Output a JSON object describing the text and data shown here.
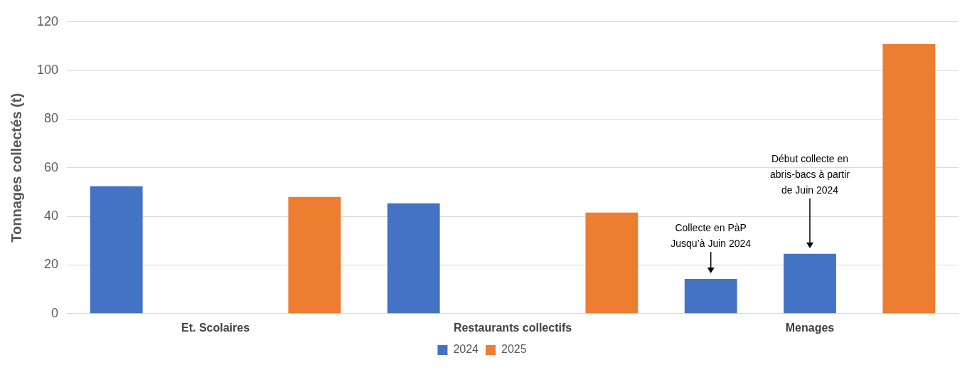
{
  "chart_data": {
    "type": "bar",
    "ylabel": "Tonnages collectés (t)",
    "categories": [
      "Et. Scolaires",
      "Restaurants collectifs",
      "Menages"
    ],
    "series": [
      {
        "name": "2024",
        "color": "#4472c4",
        "values": [
          52.4,
          45.4,
          14.3
        ]
      },
      {
        "color": "#4472c4",
        "values": [
          null,
          null,
          24.6
        ]
      },
      {
        "name": "2025",
        "color": "#ed7d31",
        "values": [
          48,
          41.6,
          110.9
        ]
      }
    ],
    "ylim": [
      0,
      120
    ],
    "yticks": [
      0,
      20,
      40,
      60,
      80,
      100,
      120
    ],
    "grid": "y",
    "legend": "bottom",
    "annotations": [
      "Collecte en PàP\nJusqu’à Juin 2024",
      "Début collecte en\nabris-bacs à partir\nde Juin 2024"
    ]
  }
}
